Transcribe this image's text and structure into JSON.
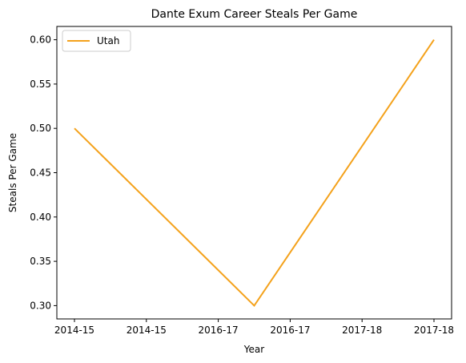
{
  "chart_data": {
    "type": "line",
    "title": "Dante Exum Career Steals Per Game",
    "xlabel": "Year",
    "ylabel": "Steals Per Game",
    "x_tick_labels": [
      "2014-15",
      "2014-15",
      "2016-17",
      "2016-17",
      "2017-18",
      "2017-18"
    ],
    "y_ticks": [
      0.3,
      0.35,
      0.4,
      0.45,
      0.5,
      0.55,
      0.6
    ],
    "ylim": [
      0.285,
      0.615
    ],
    "grid": false,
    "legend_position": "upper-left",
    "series": [
      {
        "name": "Utah",
        "color": "#f4a21c",
        "points": [
          {
            "label": "2014-15",
            "y": 0.5
          },
          {
            "label": "2016-17",
            "y": 0.3
          },
          {
            "label": "2017-18",
            "y": 0.6
          }
        ]
      }
    ]
  }
}
